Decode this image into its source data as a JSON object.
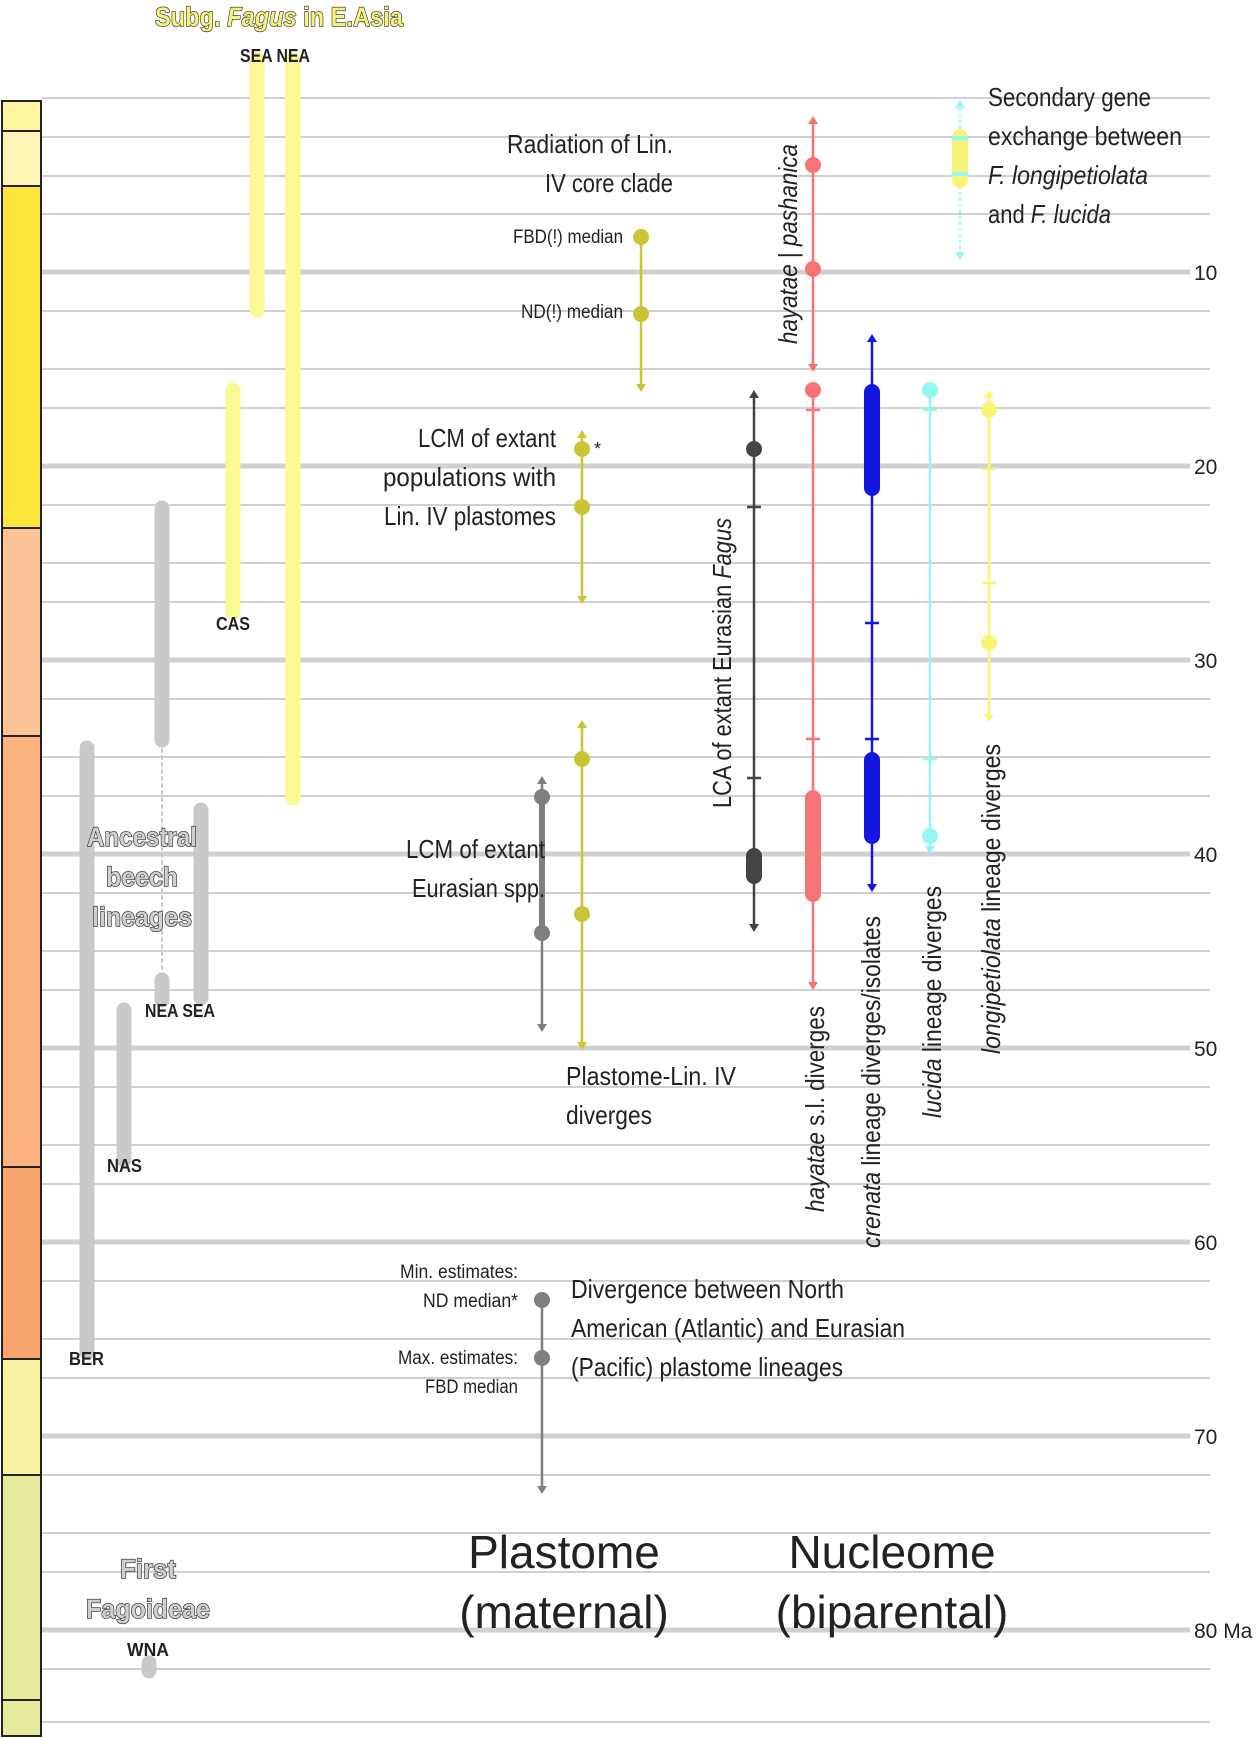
{
  "figure": {
    "title_prefix": "Subg. ",
    "title_italic": "Fagus",
    "title_suffix": " in E.Asia"
  },
  "axis": {
    "unit_label": "80 Ma",
    "tick_labels": [
      "10",
      "20",
      "30",
      "40",
      "50",
      "60",
      "70"
    ]
  },
  "colors": {
    "grey_bar": "#c9c9c9",
    "yellow_bar": "#fbf991",
    "olive": "#c9c536",
    "dark_grey": "#444444",
    "mid_grey": "#7f7f7f",
    "red": "#f87474",
    "blue": "#1515e0",
    "cyan": "#93f7f2",
    "light_yellow": "#f9f477",
    "grid": "#d0d0d0"
  },
  "timescale": [
    {
      "name": "seg-1",
      "color": "#fdf5a0"
    },
    {
      "name": "seg-2",
      "color": "#fdf5b6"
    },
    {
      "name": "seg-3",
      "color": "#fde63b"
    },
    {
      "name": "seg-4",
      "color": "#fbc496"
    },
    {
      "name": "seg-5",
      "color": "#fbb27e"
    },
    {
      "name": "seg-6",
      "color": "#f9a56e"
    },
    {
      "name": "seg-7",
      "color": "#f8f3a3"
    },
    {
      "name": "seg-8",
      "color": "#e6ea9c"
    },
    {
      "name": "seg-9",
      "color": "#e6ea9c"
    }
  ],
  "lineage_labels": {
    "sea_nea_top": "SEA NEA",
    "cas": "CAS",
    "nea_sea": "NEA SEA",
    "nas": "NAS",
    "ber": "BER",
    "wna": "WNA",
    "ancestral_1": "Ancestral",
    "ancestral_2": "beech",
    "ancestral_3": "lineages",
    "first_1": "First",
    "first_2": "Fagoideae"
  },
  "plastome": {
    "radiation_1": "Radiation of Lin.",
    "radiation_2": "IV core clade",
    "fbd_median": "FBD(!) median",
    "nd_median": "ND(!) median",
    "lcm_plast_1": "LCM of extant",
    "lcm_plast_2": "populations with",
    "lcm_plast_3": "Lin. IV plastomes",
    "asterisk": "*",
    "lcm_eur_1": "LCM of extant",
    "lcm_eur_2": "Eurasian spp.",
    "plastome_lin_1": "Plastome-Lin. IV",
    "plastome_lin_2": "diverges",
    "min_est_1": "Min. estimates:",
    "min_est_2": "ND median*",
    "max_est_1": "Max. estimates:",
    "max_est_2": "FBD median",
    "divergence_1": "Divergence between North",
    "divergence_2": "American (Atlantic) and Eurasian",
    "divergence_3": "(Pacific) plastome lineages",
    "heading_1": "Plastome",
    "heading_2": "(maternal)"
  },
  "nucleome": {
    "lca_prefix": "LCA of extant Eurasian ",
    "lca_italic": "Fagus",
    "hayatae_pash_1": "hayatae",
    "hayatae_pash_sep": " | ",
    "hayatae_pash_2": "pashanica",
    "hayatae_sl_italic": "hayatae",
    "hayatae_sl_rest": " s.l. diverges",
    "crenata_italic": "crenata",
    "crenata_rest": " lineage diverges/isolates",
    "lucida_italic": "lucida",
    "lucida_rest": " lineage diverges",
    "longi_italic": "longipetiolata",
    "longi_rest": " lineage diverges",
    "secondary_1": "Secondary gene",
    "secondary_2": "exchange between",
    "secondary_3": "F. longipetiolata",
    "secondary_4_prefix": "and ",
    "secondary_4_italic": "F. lucida",
    "heading_1": "Nucleome",
    "heading_2": "(biparental)"
  }
}
